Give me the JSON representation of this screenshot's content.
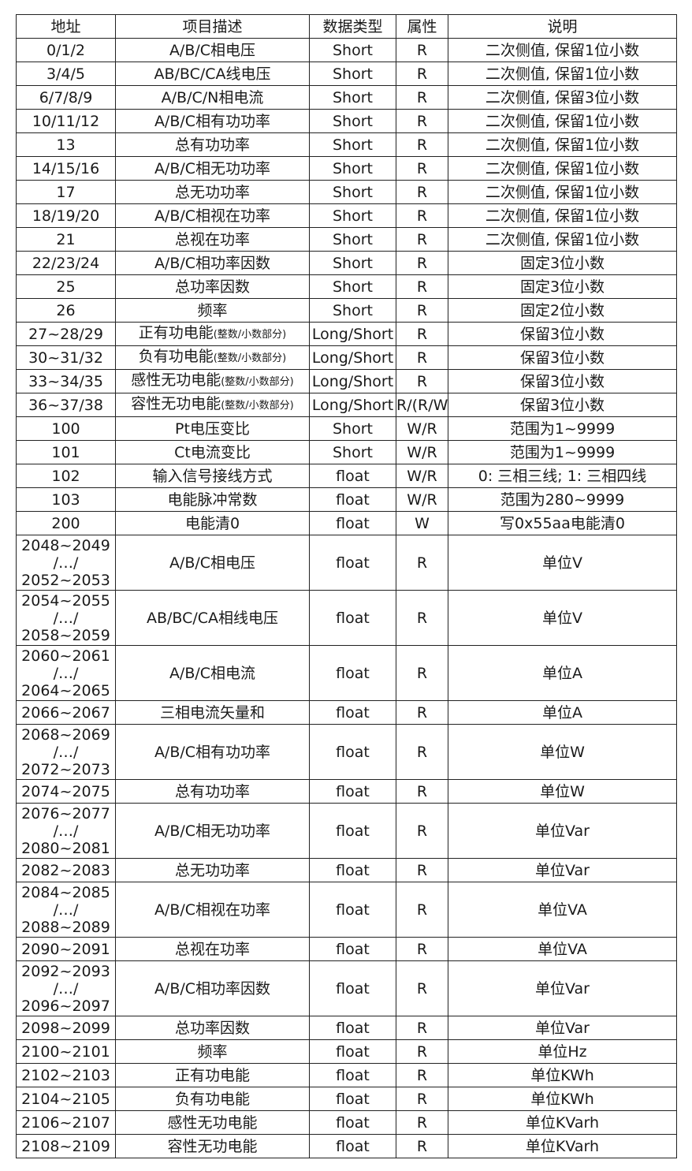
{
  "headers": [
    "地址",
    "项目描述",
    "数据类型",
    "属性",
    "说明"
  ],
  "rows": [
    {
      "addr": "0/1/2",
      "desc": "A/B/C相电压",
      "type": "Short",
      "attr": "R",
      "note": "二次侧值, 保留1位小数"
    },
    {
      "addr": "3/4/5",
      "desc": "AB/BC/CA线电压",
      "type": "Short",
      "attr": "R",
      "note": "二次侧值, 保留1位小数"
    },
    {
      "addr": "6/7/8/9",
      "desc": "A/B/C/N相电流",
      "type": "Short",
      "attr": "R",
      "note": "二次侧值, 保留3位小数"
    },
    {
      "addr": "10/11/12",
      "desc": "A/B/C相有功功率",
      "type": "Short",
      "attr": "R",
      "note": "二次侧值, 保留1位小数"
    },
    {
      "addr": "13",
      "desc": "总有功功率",
      "type": "Short",
      "attr": "R",
      "note": "二次侧值, 保留1位小数"
    },
    {
      "addr": "14/15/16",
      "desc": "A/B/C相无功功率",
      "type": "Short",
      "attr": "R",
      "note": "二次侧值, 保留1位小数"
    },
    {
      "addr": "17",
      "desc": "总无功功率",
      "type": "Short",
      "attr": "R",
      "note": "二次侧值, 保留1位小数"
    },
    {
      "addr": "18/19/20",
      "desc": "A/B/C相视在功率",
      "type": "Short",
      "attr": "R",
      "note": "二次侧值, 保留1位小数"
    },
    {
      "addr": "21",
      "desc": "总视在功率",
      "type": "Short",
      "attr": "R",
      "note": "二次侧值, 保留1位小数"
    },
    {
      "addr": "22/23/24",
      "desc": "A/B/C相功率因数",
      "type": "Short",
      "attr": "R",
      "note": "固定3位小数"
    },
    {
      "addr": "25",
      "desc": "总功率因数",
      "type": "Short",
      "attr": "R",
      "note": "固定3位小数"
    },
    {
      "addr": "26",
      "desc": "频率",
      "type": "Short",
      "attr": "R",
      "note": "固定2位小数"
    },
    {
      "addr": "27~28/29",
      "desc": "正有功电能",
      "desc_small": "(整数/小数部分)",
      "type": "Long/Short",
      "attr": "R",
      "note": "保留3位小数"
    },
    {
      "addr": "30~31/32",
      "desc": "负有功电能",
      "desc_small": "(整数/小数部分)",
      "type": "Long/Short",
      "attr": "R",
      "note": "保留3位小数"
    },
    {
      "addr": "33~34/35",
      "desc": "感性无功电能",
      "desc_small": "(整数/小数部分)",
      "type": "Long/Short",
      "attr": "R",
      "note": "保留3位小数"
    },
    {
      "addr": "36~37/38",
      "desc": "容性无功电能",
      "desc_small": "(整数/小数部分)",
      "type": "Long/Short",
      "attr": "R/(R/W)",
      "note": "保留3位小数"
    },
    {
      "addr": "100",
      "desc": "Pt电压变比",
      "type": "Short",
      "attr": "W/R",
      "note": "范围为1~9999"
    },
    {
      "addr": "101",
      "desc": "Ct电流变比",
      "type": "Short",
      "attr": "W/R",
      "note": "范围为1~9999"
    },
    {
      "addr": "102",
      "desc": "输入信号接线方式",
      "type": "float",
      "attr": "W/R",
      "note": "0: 三相三线; 1: 三相四线"
    },
    {
      "addr": "103",
      "desc": "电能脉冲常数",
      "type": "float",
      "attr": "W/R",
      "note": "范围为280~9999"
    },
    {
      "addr": "200",
      "desc": "电能清0",
      "type": "float",
      "attr": "W",
      "note": "写0x55aa电能清0"
    },
    {
      "addr": "2048~2049\n/…/\n2052~2053",
      "desc": "A/B/C相电压",
      "type": "float",
      "attr": "R",
      "note": "单位V"
    },
    {
      "addr": "2054~2055\n/…/\n2058~2059",
      "desc": "AB/BC/CA相线电压",
      "type": "float",
      "attr": "R",
      "note": "单位V"
    },
    {
      "addr": "2060~2061\n/…/\n2064~2065",
      "desc": "A/B/C相电流",
      "type": "float",
      "attr": "R",
      "note": "单位A"
    },
    {
      "addr": "2066~2067",
      "desc": "三相电流矢量和",
      "type": "float",
      "attr": "R",
      "note": "单位A"
    },
    {
      "addr": "2068~2069\n/…/\n2072~2073",
      "desc": "A/B/C相有功功率",
      "type": "float",
      "attr": "R",
      "note": "单位W"
    },
    {
      "addr": "2074~2075",
      "desc": "总有功功率",
      "type": "float",
      "attr": "R",
      "note": "单位W"
    },
    {
      "addr": "2076~2077\n/…/\n2080~2081",
      "desc": "A/B/C相无功功率",
      "type": "float",
      "attr": "R",
      "note": "单位Var"
    },
    {
      "addr": "2082~2083",
      "desc": "总无功功率",
      "type": "float",
      "attr": "R",
      "note": "单位Var"
    },
    {
      "addr": "2084~2085\n/…/\n2088~2089",
      "desc": "A/B/C相视在功率",
      "type": "float",
      "attr": "R",
      "note": "单位VA"
    },
    {
      "addr": "2090~2091",
      "desc": "总视在功率",
      "type": "float",
      "attr": "R",
      "note": "单位VA"
    },
    {
      "addr": "2092~2093\n/…/\n2096~2097",
      "desc": "A/B/C相功率因数",
      "type": "float",
      "attr": "R",
      "note": "单位Var"
    },
    {
      "addr": "2098~2099",
      "desc": "总功率因数",
      "type": "float",
      "attr": "R",
      "note": "单位Var"
    },
    {
      "addr": "2100~2101",
      "desc": "频率",
      "type": "float",
      "attr": "R",
      "note": "单位Hz"
    },
    {
      "addr": "2102~2103",
      "desc": "正有功电能",
      "type": "float",
      "attr": "R",
      "note": "单位KWh"
    },
    {
      "addr": "2104~2105",
      "desc": "负有功电能",
      "type": "float",
      "attr": "R",
      "note": "单位KWh"
    },
    {
      "addr": "2106~2107",
      "desc": "感性无功电能",
      "type": "float",
      "attr": "R",
      "note": "单位KVarh"
    },
    {
      "addr": "2108~2109",
      "desc": "容性无功电能",
      "type": "float",
      "attr": "R",
      "note": "单位KVarh"
    }
  ]
}
